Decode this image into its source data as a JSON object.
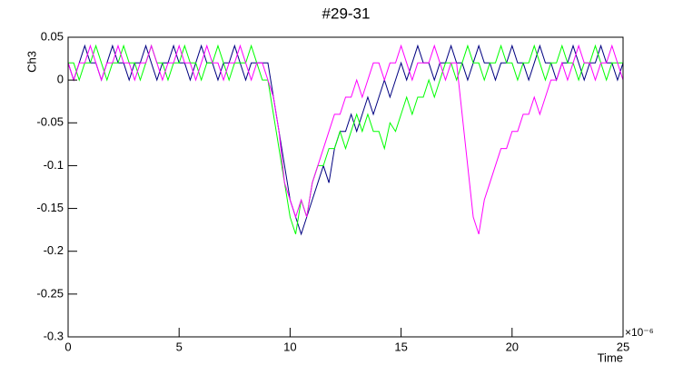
{
  "chart_data": {
    "type": "line",
    "title": "#29-31",
    "y_label": "Ch3",
    "x_label": "Time",
    "x_exponent_label": "×10⁻⁶",
    "x": [
      0,
      0.25,
      0.5,
      0.75,
      1,
      1.25,
      1.5,
      1.75,
      2,
      2.25,
      2.5,
      2.75,
      3,
      3.25,
      3.5,
      3.75,
      4,
      4.25,
      4.5,
      4.75,
      5,
      5.25,
      5.5,
      5.75,
      6,
      6.25,
      6.5,
      6.75,
      7,
      7.25,
      7.5,
      7.75,
      8,
      8.25,
      8.5,
      8.75,
      9,
      9.25,
      9.5,
      9.75,
      10,
      10.25,
      10.5,
      10.75,
      11,
      11.25,
      11.5,
      11.75,
      12,
      12.25,
      12.5,
      12.75,
      13,
      13.25,
      13.5,
      13.75,
      14,
      14.25,
      14.5,
      14.75,
      15,
      15.25,
      15.5,
      15.75,
      16,
      16.25,
      16.5,
      16.75,
      17,
      17.25,
      17.5,
      17.75,
      18,
      18.25,
      18.5,
      18.75,
      19,
      19.25,
      19.5,
      19.75,
      20,
      20.25,
      20.5,
      20.75,
      21,
      21.25,
      21.5,
      21.75,
      22,
      22.25,
      22.5,
      22.75,
      23,
      23.25,
      23.5,
      23.75,
      24,
      24.25,
      24.5,
      24.75,
      25
    ],
    "series": [
      {
        "color": "#000080",
        "values": [
          0.02,
          0,
          0.02,
          0.04,
          0.02,
          0.02,
          0,
          0.02,
          0.04,
          0.02,
          0.02,
          0,
          0.02,
          0.02,
          0.04,
          0.02,
          0,
          0.02,
          0.02,
          0.04,
          0.02,
          0.02,
          0,
          0.02,
          0.04,
          0.02,
          0.02,
          0,
          0.02,
          0.02,
          0.04,
          0.02,
          0,
          0.02,
          0.02,
          0.02,
          0.02,
          -0.02,
          -0.06,
          -0.1,
          -0.14,
          -0.16,
          -0.18,
          -0.16,
          -0.14,
          -0.12,
          -0.1,
          -0.12,
          -0.08,
          -0.06,
          -0.06,
          -0.04,
          -0.06,
          -0.04,
          -0.02,
          -0.04,
          -0.02,
          0,
          -0.02,
          0,
          0.02,
          0,
          0.02,
          0.04,
          0.02,
          0.02,
          0,
          0.02,
          0.02,
          0.04,
          0.02,
          0.02,
          0,
          0.02,
          0.04,
          0.02,
          0.02,
          0,
          0.02,
          0.02,
          0.04,
          0.02,
          0.02,
          0,
          0.02,
          0.04,
          0.02,
          0.02,
          0,
          0.02,
          0.02,
          0.04,
          0.02,
          0,
          0.02,
          0.02,
          0.04,
          0.02,
          0.02,
          0,
          0.02
        ]
      },
      {
        "color": "#00ff00",
        "values": [
          0.02,
          0.02,
          0,
          0.02,
          0.02,
          0.04,
          0.02,
          0,
          0.02,
          0.02,
          0.04,
          0.02,
          0.02,
          0,
          0.02,
          0.04,
          0.02,
          0.02,
          0,
          0.02,
          0.02,
          0.04,
          0.02,
          0.02,
          0,
          0.02,
          0.02,
          0.04,
          0.02,
          0,
          0.02,
          0.02,
          0.02,
          0.04,
          0.02,
          0,
          0,
          -0.04,
          -0.08,
          -0.12,
          -0.16,
          -0.18,
          -0.14,
          -0.16,
          -0.12,
          -0.1,
          -0.1,
          -0.08,
          -0.08,
          -0.06,
          -0.08,
          -0.06,
          -0.04,
          -0.06,
          -0.04,
          -0.06,
          -0.06,
          -0.08,
          -0.05,
          -0.06,
          -0.04,
          -0.02,
          -0.04,
          -0.02,
          -0.02,
          0,
          -0.02,
          0,
          0.02,
          0.02,
          0,
          0.02,
          0.04,
          0.02,
          0.02,
          0,
          0.02,
          0.02,
          0.04,
          0.02,
          0.02,
          0,
          0.02,
          0.02,
          0.04,
          0.02,
          0,
          0.02,
          0.02,
          0.04,
          0.02,
          0.02,
          0,
          0.02,
          0.02,
          0.04,
          0.02,
          0,
          0.02,
          0.02,
          0.02
        ]
      },
      {
        "color": "#ff00ff",
        "values": [
          0.02,
          0,
          0.02,
          0.02,
          0.04,
          0.02,
          0,
          0.02,
          0.02,
          0.04,
          0.02,
          0.02,
          0,
          0.02,
          0.02,
          0.04,
          0.02,
          0,
          0.02,
          0.02,
          0.04,
          0.02,
          0.02,
          0,
          0.02,
          0.04,
          0.02,
          0.02,
          0,
          0.02,
          0.02,
          0.04,
          0.02,
          0,
          0.02,
          0.02,
          0,
          -0.02,
          -0.06,
          -0.12,
          -0.14,
          -0.16,
          -0.14,
          -0.16,
          -0.12,
          -0.1,
          -0.08,
          -0.06,
          -0.04,
          -0.04,
          -0.02,
          -0.02,
          0,
          -0.02,
          0,
          0.02,
          0.02,
          0,
          0.02,
          0.02,
          0.04,
          0.02,
          0,
          0.02,
          0.02,
          0.02,
          0.04,
          0.02,
          0,
          0.02,
          0.02,
          -0.04,
          -0.1,
          -0.16,
          -0.18,
          -0.14,
          -0.12,
          -0.1,
          -0.08,
          -0.08,
          -0.06,
          -0.06,
          -0.04,
          -0.04,
          -0.02,
          -0.04,
          -0.02,
          0,
          0,
          0.02,
          0,
          0.02,
          0.04,
          0.02,
          0.02,
          0,
          0.02,
          0.02,
          0.04,
          0.02,
          0
        ]
      }
    ],
    "xlim": [
      0,
      25
    ],
    "xticks": [
      0,
      5,
      10,
      15,
      20,
      25
    ],
    "ylim": [
      -0.3,
      0.05
    ],
    "yticks": [
      0.05,
      0,
      -0.05,
      -0.1,
      -0.15,
      -0.2,
      -0.25,
      -0.3
    ]
  }
}
